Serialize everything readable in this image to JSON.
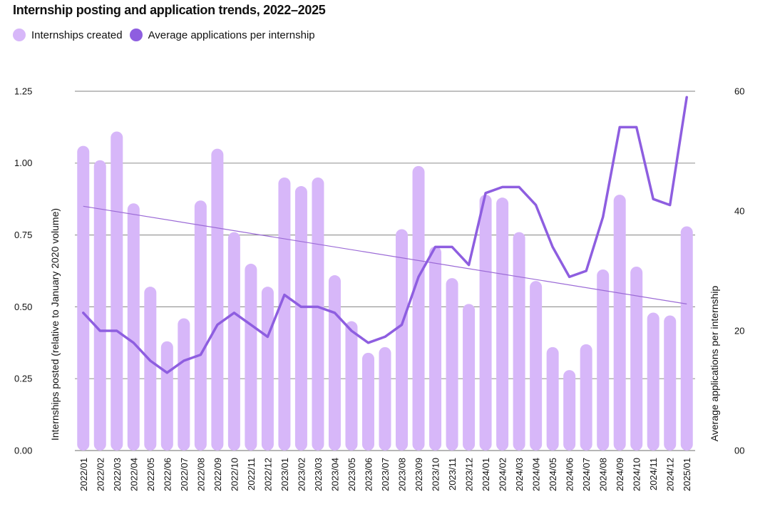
{
  "chart_data": {
    "type": "bar",
    "title": "Internship posting and application trends, 2022–2025",
    "categories": [
      "2022/01",
      "2022/02",
      "2022/03",
      "2022/04",
      "2022/05",
      "2022/06",
      "2022/07",
      "2022/08",
      "2022/09",
      "2022/10",
      "2022/11",
      "2022/12",
      "2023/01",
      "2023/02",
      "2023/03",
      "2023/04",
      "2023/05",
      "2023/06",
      "2023/07",
      "2023/08",
      "2023/09",
      "2023/10",
      "2023/11",
      "2023/12",
      "2024/01",
      "2024/02",
      "2024/03",
      "2024/04",
      "2024/05",
      "2024/06",
      "2024/07",
      "2024/08",
      "2024/09",
      "2024/10",
      "2024/11",
      "2024/12",
      "2025/01"
    ],
    "series": [
      {
        "name": "Internships created",
        "type": "bar",
        "axis": "left",
        "color": "#d7b7f9",
        "values": [
          1.06,
          1.01,
          1.11,
          0.86,
          0.57,
          0.38,
          0.46,
          0.87,
          1.05,
          0.76,
          0.65,
          0.57,
          0.95,
          0.92,
          0.95,
          0.61,
          0.45,
          0.34,
          0.36,
          0.77,
          0.99,
          0.71,
          0.6,
          0.51,
          0.89,
          0.88,
          0.76,
          0.59,
          0.36,
          0.28,
          0.37,
          0.63,
          0.89,
          0.64,
          0.48,
          0.47,
          0.78
        ]
      },
      {
        "name": "Average applications per internship",
        "type": "line",
        "axis": "right",
        "color": "#8e5ee0",
        "values": [
          23,
          20,
          20,
          18,
          15,
          13,
          15,
          16,
          21,
          23,
          21,
          19,
          26,
          24,
          24,
          23,
          20,
          18,
          19,
          21,
          29,
          34,
          34,
          31,
          43,
          44,
          44,
          41,
          34,
          29,
          30,
          39,
          54,
          54,
          42,
          41,
          59
        ]
      },
      {
        "type": "trendline",
        "axis": "left",
        "color": "#9b6ad6",
        "start": 0.85,
        "end": 0.51
      }
    ],
    "ylabel": "Internships posted (relative to January 2020 volume)",
    "y2label": "Average applications per internship",
    "ylim": [
      0,
      1.25
    ],
    "y2lim": [
      0,
      60
    ],
    "yticks": [
      "0.00",
      "0.25",
      "0.50",
      "0.75",
      "1.00",
      "1.25"
    ],
    "y2ticks": [
      "00",
      "20",
      "40",
      "60"
    ],
    "grid": true,
    "legend": "top-left"
  }
}
